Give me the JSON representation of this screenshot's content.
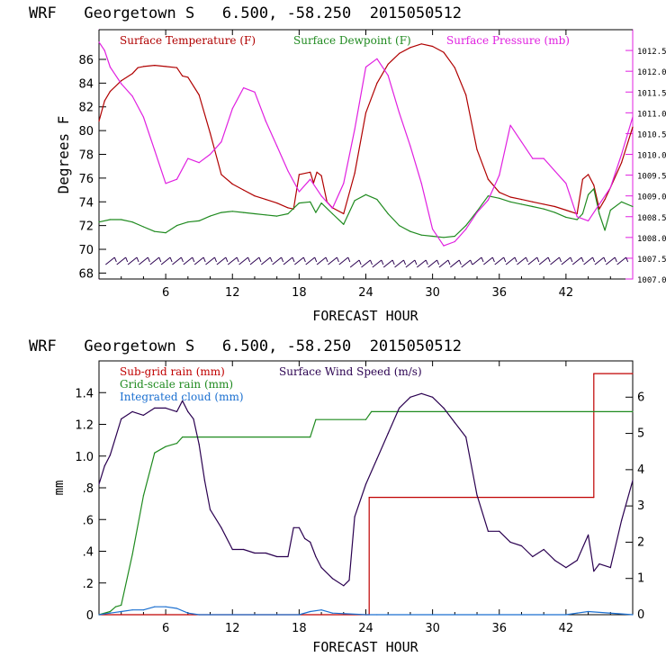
{
  "colors": {
    "temperature": "#b00000",
    "dewpoint": "#1f8a1f",
    "pressure": "#e020e0",
    "wind": "#2a0050",
    "subgrid": "#c00000",
    "gridscale": "#1f8a1f",
    "cloud": "#1a6fd0",
    "barbs": "#2a0050",
    "axis": "#000000"
  },
  "chart_data": [
    {
      "type": "line",
      "title": "WRF   Georgetown S   6.500, -58.250  2015050512",
      "xlabel": "FORECAST HOUR",
      "ylabel": "Degrees F",
      "xlim": [
        0,
        48
      ],
      "ylim": [
        67.5,
        88.5
      ],
      "y2lim": [
        1007.0,
        1013.0
      ],
      "xticks": [
        "6",
        "12",
        "18",
        "24",
        "30",
        "36",
        "42"
      ],
      "yticks": [
        "68",
        "70",
        "72",
        "74",
        "76",
        "78",
        "80",
        "82",
        "84",
        "86"
      ],
      "y2ticks": [
        "1007.0",
        "1007.5",
        "1008.0",
        "1008.5",
        "1009.0",
        "1009.5",
        "1010.0",
        "1010.5",
        "1011.0",
        "1011.5",
        "1012.0",
        "1012.5"
      ],
      "legend": [
        "Surface Temperature (F)",
        "Surface Dewpoint (F)",
        "Surface Pressure (mb)"
      ],
      "series": [
        {
          "name": "Surface Temperature (F)",
          "x": [
            0,
            0.5,
            1,
            2,
            3,
            3.5,
            4,
            5,
            6,
            7,
            7.5,
            8,
            9,
            10,
            11,
            12,
            13,
            14,
            15,
            16,
            17,
            17.5,
            18,
            19,
            19.3,
            19.6,
            20,
            20.5,
            21,
            22,
            23,
            24,
            25,
            26,
            27,
            28,
            29,
            30,
            31,
            32,
            33,
            34,
            35,
            36,
            37,
            38,
            39,
            40,
            41,
            42,
            43,
            43.5,
            44,
            44.5,
            45,
            45.5,
            46,
            47,
            48
          ],
          "values": [
            80.8,
            82.5,
            83.3,
            84.2,
            84.8,
            85.3,
            85.4,
            85.5,
            85.4,
            85.3,
            84.6,
            84.5,
            83.0,
            79.8,
            76.3,
            75.5,
            75.0,
            74.5,
            74.2,
            73.9,
            73.5,
            73.4,
            76.3,
            76.5,
            75.6,
            76.5,
            76.2,
            74.0,
            73.5,
            73.0,
            76.4,
            81.5,
            84.0,
            85.6,
            86.5,
            87.0,
            87.3,
            87.1,
            86.6,
            85.3,
            83.0,
            78.4,
            75.9,
            74.8,
            74.4,
            74.2,
            74.0,
            73.8,
            73.6,
            73.3,
            73.0,
            75.9,
            76.3,
            75.4,
            73.4,
            74.2,
            75.2,
            77.3,
            80.3
          ]
        },
        {
          "name": "Surface Dewpoint (F)",
          "x": [
            0,
            1,
            2,
            3,
            4,
            5,
            6,
            7,
            8,
            9,
            10,
            11,
            12,
            13,
            14,
            15,
            16,
            17,
            18,
            19,
            19.5,
            20,
            21,
            22,
            23,
            24,
            25,
            26,
            27,
            28,
            29,
            30,
            31,
            32,
            33,
            34,
            35,
            36,
            37,
            38,
            39,
            40,
            41,
            42,
            43,
            43.5,
            44,
            44.5,
            45,
            45.5,
            46,
            47,
            48
          ],
          "values": [
            72.3,
            72.5,
            72.5,
            72.3,
            71.9,
            71.5,
            71.4,
            72.0,
            72.3,
            72.4,
            72.8,
            73.1,
            73.2,
            73.1,
            73.0,
            72.9,
            72.8,
            73.0,
            73.9,
            74.0,
            73.1,
            73.9,
            73.0,
            72.1,
            74.1,
            74.6,
            74.2,
            73.0,
            72.0,
            71.5,
            71.2,
            71.1,
            71.0,
            71.1,
            72.0,
            73.2,
            74.5,
            74.3,
            74.0,
            73.8,
            73.6,
            73.4,
            73.1,
            72.7,
            72.5,
            73.0,
            74.6,
            75.1,
            73.0,
            71.6,
            73.3,
            74.0,
            73.6
          ]
        },
        {
          "name": "Surface Pressure (mb)",
          "x": [
            0,
            0.5,
            1,
            2,
            3,
            4,
            5,
            6,
            7,
            8,
            9,
            10,
            11,
            12,
            13,
            14,
            15,
            16,
            17,
            18,
            19,
            20,
            21,
            22,
            23,
            24,
            25,
            26,
            27,
            28,
            29,
            30,
            31,
            32,
            33,
            34,
            35,
            36,
            37,
            38,
            39,
            40,
            41,
            42,
            43,
            44,
            45,
            46,
            47,
            48
          ],
          "values": [
            1012.7,
            1012.5,
            1012.1,
            1011.7,
            1011.4,
            1010.9,
            1010.1,
            1009.3,
            1009.4,
            1009.9,
            1009.8,
            1010.0,
            1010.3,
            1011.1,
            1011.6,
            1011.5,
            1010.8,
            1010.2,
            1009.6,
            1009.1,
            1009.4,
            1009.0,
            1008.7,
            1009.3,
            1010.6,
            1012.1,
            1012.3,
            1011.9,
            1011.0,
            1010.2,
            1009.3,
            1008.2,
            1007.8,
            1007.9,
            1008.2,
            1008.6,
            1008.9,
            1009.5,
            1010.7,
            1010.3,
            1009.9,
            1009.9,
            1009.6,
            1009.3,
            1008.5,
            1008.4,
            1008.8,
            1009.2,
            1010.0,
            1010.9
          ]
        }
      ]
    },
    {
      "type": "line",
      "title": "WRF   Georgetown S   6.500, -58.250  2015050512",
      "xlabel": "FORECAST HOUR",
      "ylabel": "mm",
      "xlim": [
        0,
        48
      ],
      "ylim": [
        0,
        1.6
      ],
      "y2lim": [
        0,
        7
      ],
      "xticks": [
        "6",
        "12",
        "18",
        "24",
        "30",
        "36",
        "42"
      ],
      "yticks": [
        "0",
        ".2",
        ".4",
        ".6",
        ".8",
        "1.0",
        "1.2",
        "1.4"
      ],
      "y2ticks": [
        "0",
        "1",
        "2",
        "3",
        "4",
        "5",
        "6"
      ],
      "legend": [
        "Sub-grid rain (mm)",
        "Surface Wind Speed (m/s)",
        "Grid-scale rain (mm)",
        "Integrated cloud (mm)"
      ],
      "series": [
        {
          "name": "Sub-grid rain (mm)",
          "x": [
            0,
            24,
            24,
            24.3,
            24.3,
            44.5,
            44.5,
            48
          ],
          "values": [
            0,
            0,
            0.0,
            0.0,
            0.74,
            0.74,
            1.52,
            1.52
          ]
        },
        {
          "name": "Grid-scale rain (mm)",
          "x": [
            0,
            1,
            1.5,
            2,
            3,
            4,
            5,
            6,
            7,
            7.5,
            19,
            19.5,
            24,
            24.5,
            48
          ],
          "values": [
            0,
            0.02,
            0.05,
            0.06,
            0.38,
            0.75,
            1.02,
            1.06,
            1.08,
            1.12,
            1.12,
            1.23,
            1.23,
            1.28,
            1.28
          ]
        },
        {
          "name": "Integrated cloud (mm)",
          "x": [
            0,
            1,
            2,
            3,
            4,
            5,
            6,
            7,
            8,
            9,
            10,
            18,
            19,
            20,
            21,
            24,
            25,
            30,
            42,
            43,
            44,
            48
          ],
          "values": [
            0,
            0.01,
            0.02,
            0.03,
            0.03,
            0.05,
            0.05,
            0.04,
            0.01,
            0.0,
            0,
            0,
            0.02,
            0.03,
            0.01,
            0,
            0,
            0,
            0,
            0.01,
            0.02,
            0
          ]
        },
        {
          "name": "Surface Wind Speed (m/s)",
          "axis": "right",
          "x": [
            0,
            0.5,
            1,
            2,
            3,
            4,
            5,
            6,
            7,
            7.5,
            8,
            8.5,
            9,
            9.5,
            10,
            11,
            12,
            13,
            14,
            15,
            16,
            17,
            17.5,
            18,
            18.5,
            19,
            19.5,
            20,
            21,
            22,
            22.5,
            23,
            24,
            25,
            26,
            27,
            28,
            29,
            30,
            31,
            32,
            33,
            34,
            35,
            36,
            37,
            38,
            39,
            40,
            41,
            42,
            43,
            44,
            44.5,
            45,
            46,
            47,
            48
          ],
          "values": [
            3.6,
            4.1,
            4.4,
            5.4,
            5.6,
            5.5,
            5.7,
            5.7,
            5.6,
            5.9,
            5.6,
            5.4,
            4.7,
            3.7,
            2.9,
            2.4,
            1.8,
            1.8,
            1.7,
            1.7,
            1.6,
            1.6,
            2.4,
            2.4,
            2.1,
            2.0,
            1.6,
            1.3,
            1.0,
            0.8,
            0.95,
            2.7,
            3.6,
            4.3,
            5.0,
            5.7,
            6.0,
            6.1,
            6.0,
            5.7,
            5.3,
            4.9,
            3.3,
            2.3,
            2.3,
            2.0,
            1.9,
            1.6,
            1.8,
            1.5,
            1.3,
            1.5,
            2.2,
            1.2,
            1.4,
            1.3,
            2.6,
            3.7
          ]
        }
      ]
    }
  ]
}
